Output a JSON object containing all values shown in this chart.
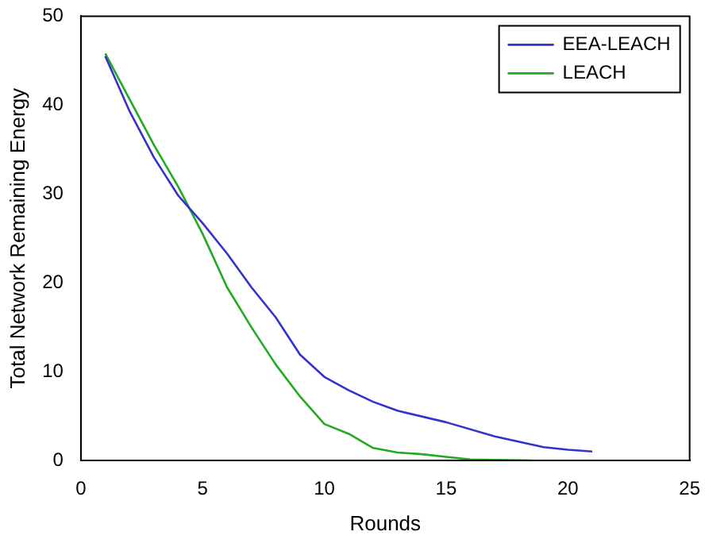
{
  "chart_data": {
    "type": "line",
    "xlabel": "Rounds",
    "ylabel": "Total Network Remaining Energy",
    "xlim": [
      0,
      25
    ],
    "xticks": [
      0,
      5,
      10,
      15,
      20,
      25
    ],
    "ylim": [
      0,
      50
    ],
    "yticks": [
      0,
      10,
      20,
      30,
      40,
      50
    ],
    "legend": "top right",
    "grid": false,
    "marker": "none",
    "line_style": "solid",
    "series": [
      {
        "name": "EEA-LEACH",
        "color": "#3333cc",
        "x": [
          1,
          2,
          3,
          4,
          5,
          6,
          7,
          8,
          9,
          10,
          11,
          12,
          13,
          15,
          17,
          19,
          20,
          21
        ],
        "values": [
          45.5,
          39.3,
          34.1,
          29.8,
          26.7,
          23.3,
          19.5,
          16.1,
          11.9,
          9.4,
          7.9,
          6.6,
          5.6,
          4.3,
          2.7,
          1.5,
          1.2,
          1.0
        ]
      },
      {
        "name": "LEACH",
        "color": "#22aa22",
        "x": [
          1,
          3,
          4,
          5,
          6,
          7,
          8,
          9,
          10,
          11,
          12,
          13,
          14,
          15,
          16,
          18.5
        ],
        "values": [
          45.8,
          35.5,
          30.8,
          25.5,
          19.5,
          15,
          10.8,
          7.2,
          4.1,
          3.0,
          1.4,
          0.9,
          0.7,
          0.4,
          0.1,
          0
        ]
      }
    ]
  }
}
